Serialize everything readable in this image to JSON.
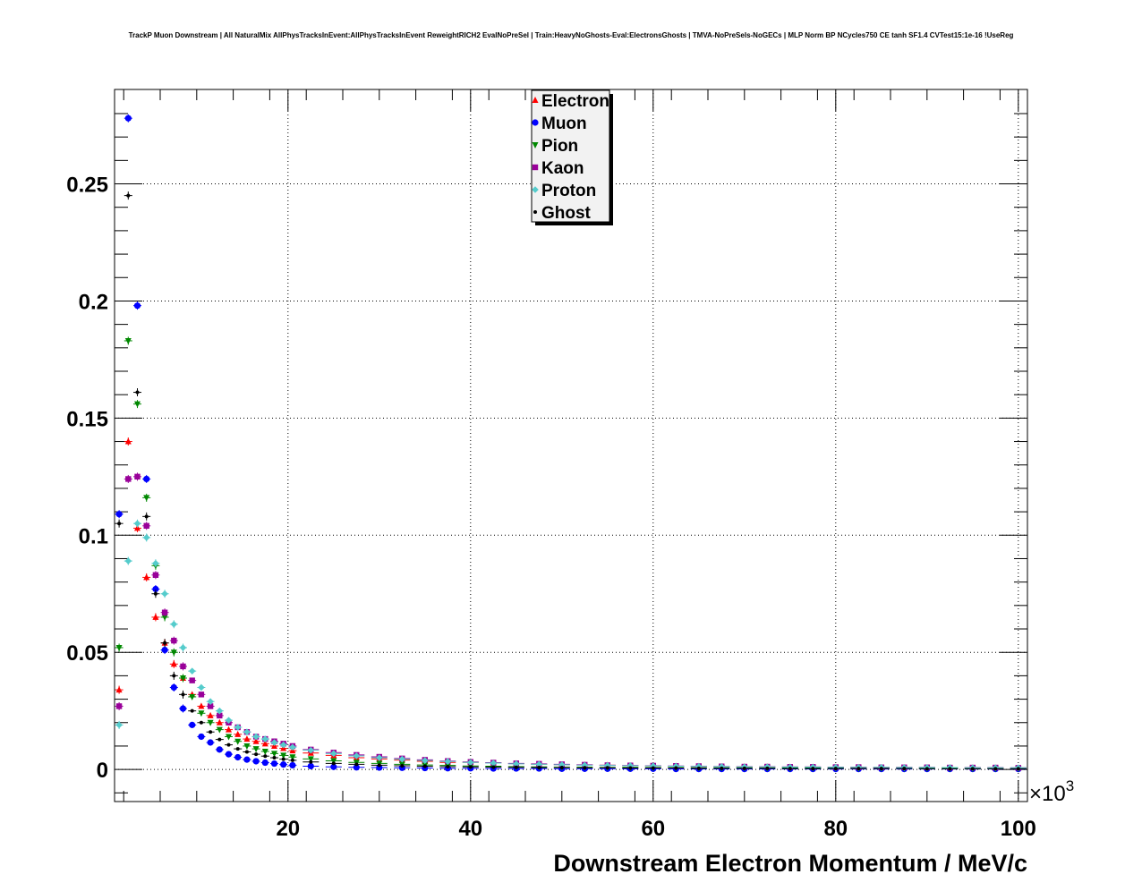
{
  "chart_data": {
    "type": "scatter",
    "title": "TrackP Muon Downstream | All NaturalMix AllPhysTracksInEvent:AllPhysTracksInEvent ReweightRICH2 EvalNoPreSel | Train:HeavyNoGhosts-Eval:ElectronsGhosts | TMVA-NoPreSels-NoGECs | MLP Norm BP NCycles750 CE tanh SF1.4 CVTest15:1e-16 !UseReg",
    "xlabel": "Downstream Electron Momentum / MeV/c",
    "ylabel": "",
    "x_multiplier_label": "×10",
    "x_multiplier_exp": "3",
    "xlim": [
      1000,
      101000
    ],
    "ylim": [
      -0.0137,
      0.2903
    ],
    "x_ticks": [
      "20",
      "40",
      "60",
      "80",
      "100"
    ],
    "y_ticks": [
      "0",
      "0.05",
      "0.1",
      "0.15",
      "0.2",
      "0.25"
    ],
    "grid": true,
    "legend_position": "top-center",
    "legend": [
      "Electron",
      "Muon",
      "Pion",
      "Kaon",
      "Proton",
      "Ghost"
    ],
    "x": [
      1500,
      2500,
      3500,
      4500,
      5500,
      6500,
      7500,
      8500,
      9500,
      10500,
      11500,
      12500,
      13500,
      14500,
      15500,
      16500,
      17500,
      18500,
      19500,
      20500,
      22500,
      25000,
      27500,
      30000,
      32500,
      35000,
      37500,
      40000,
      42500,
      45000,
      47500,
      50000,
      52500,
      55000,
      57500,
      60000,
      62500,
      65000,
      67500,
      70000,
      72500,
      75000,
      77500,
      80000,
      82500,
      85000,
      87500,
      90000,
      92500,
      95000,
      97500,
      100000
    ],
    "series": [
      {
        "name": "Electron",
        "color": "#ff0000",
        "marker": "triangle-up",
        "values": [
          0.034,
          0.14,
          0.103,
          0.082,
          0.065,
          0.054,
          0.045,
          0.039,
          0.032,
          0.027,
          0.023,
          0.02,
          0.017,
          0.015,
          0.013,
          0.012,
          0.011,
          0.01,
          0.009,
          0.008,
          0.007,
          0.006,
          0.005,
          0.0045,
          0.004,
          0.0035,
          0.003,
          0.003,
          0.0028,
          0.0025,
          0.0022,
          0.002,
          0.0019,
          0.0018,
          0.0016,
          0.0015,
          0.0014,
          0.0013,
          0.0012,
          0.0011,
          0.0011,
          0.001,
          0.001,
          0.0009,
          0.0009,
          0.0008,
          0.0008,
          0.0007,
          0.0007,
          0.0007,
          0.0006,
          0.0006
        ]
      },
      {
        "name": "Muon",
        "color": "#0000ff",
        "marker": "circle",
        "values": [
          0.109,
          0.278,
          0.198,
          0.124,
          0.077,
          0.051,
          0.035,
          0.026,
          0.019,
          0.014,
          0.0115,
          0.0085,
          0.0065,
          0.0052,
          0.0042,
          0.0035,
          0.0029,
          0.0025,
          0.0021,
          0.0018,
          0.0014,
          0.0011,
          0.0009,
          0.0008,
          0.0007,
          0.0006,
          0.0005,
          0.0005,
          0.0004,
          0.0004,
          0.0004,
          0.0003,
          0.0003,
          0.0003,
          0.0003,
          0.0003,
          0.0002,
          0.0002,
          0.0002,
          0.0002,
          0.0002,
          0.0002,
          0.0002,
          0.0002,
          0.0002,
          0.0002,
          0.0002,
          0.0002,
          0.0002,
          0.0002,
          0.0002,
          0.0002
        ]
      },
      {
        "name": "Pion",
        "color": "#008800",
        "marker": "triangle-down",
        "values": [
          0.052,
          0.183,
          0.156,
          0.116,
          0.087,
          0.065,
          0.05,
          0.039,
          0.031,
          0.024,
          0.02,
          0.017,
          0.014,
          0.012,
          0.01,
          0.0088,
          0.0077,
          0.0068,
          0.006,
          0.0053,
          0.0045,
          0.0037,
          0.003,
          0.0026,
          0.0022,
          0.0019,
          0.0017,
          0.0015,
          0.0014,
          0.0012,
          0.0011,
          0.001,
          0.001,
          0.0009,
          0.0009,
          0.0008,
          0.0008,
          0.0007,
          0.0007,
          0.0007,
          0.0006,
          0.0006,
          0.0006,
          0.0006,
          0.0005,
          0.0005,
          0.0005,
          0.0005,
          0.0005,
          0.0004,
          0.0004,
          0.0004
        ]
      },
      {
        "name": "Kaon",
        "color": "#990099",
        "marker": "square",
        "values": [
          0.027,
          0.124,
          0.125,
          0.104,
          0.083,
          0.067,
          0.055,
          0.044,
          0.038,
          0.032,
          0.027,
          0.023,
          0.02,
          0.018,
          0.016,
          0.014,
          0.013,
          0.012,
          0.011,
          0.01,
          0.0085,
          0.0072,
          0.0062,
          0.0054,
          0.0047,
          0.0041,
          0.0036,
          0.0032,
          0.0029,
          0.0026,
          0.0024,
          0.0022,
          0.002,
          0.0018,
          0.0017,
          0.0016,
          0.0015,
          0.0014,
          0.0013,
          0.0012,
          0.0012,
          0.0011,
          0.0011,
          0.001,
          0.001,
          0.0009,
          0.0009,
          0.0009,
          0.0008,
          0.0008,
          0.0008,
          0.0007
        ]
      },
      {
        "name": "Proton",
        "color": "#55cccc",
        "marker": "diamond",
        "values": [
          0.019,
          0.089,
          0.105,
          0.099,
          0.088,
          0.075,
          0.062,
          0.052,
          0.042,
          0.035,
          0.029,
          0.025,
          0.021,
          0.018,
          0.016,
          0.014,
          0.013,
          0.0115,
          0.0105,
          0.0095,
          0.0082,
          0.0068,
          0.0058,
          0.005,
          0.0044,
          0.0038,
          0.0034,
          0.003,
          0.0027,
          0.0024,
          0.0022,
          0.002,
          0.0018,
          0.0017,
          0.0016,
          0.0015,
          0.0014,
          0.0013,
          0.0012,
          0.0011,
          0.0011,
          0.001,
          0.001,
          0.0009,
          0.0009,
          0.0009,
          0.0008,
          0.0008,
          0.0008,
          0.0007,
          0.0007,
          0.0007
        ]
      },
      {
        "name": "Ghost",
        "color": "#000000",
        "marker": "small-dot",
        "values": [
          0.105,
          0.245,
          0.161,
          0.108,
          0.075,
          0.054,
          0.04,
          0.032,
          0.025,
          0.02,
          0.016,
          0.0128,
          0.0105,
          0.0088,
          0.0075,
          0.0065,
          0.0057,
          0.005,
          0.0044,
          0.0039,
          0.0032,
          0.0026,
          0.0022,
          0.0018,
          0.0016,
          0.0014,
          0.0012,
          0.0011,
          0.001,
          0.0009,
          0.0008,
          0.0008,
          0.0007,
          0.0007,
          0.0006,
          0.0006,
          0.0006,
          0.0005,
          0.0005,
          0.0005,
          0.0005,
          0.0004,
          0.0004,
          0.0004,
          0.0004,
          0.0004,
          0.0004,
          0.0003,
          0.0003,
          0.0003,
          0.0003,
          0.0003
        ]
      }
    ]
  }
}
